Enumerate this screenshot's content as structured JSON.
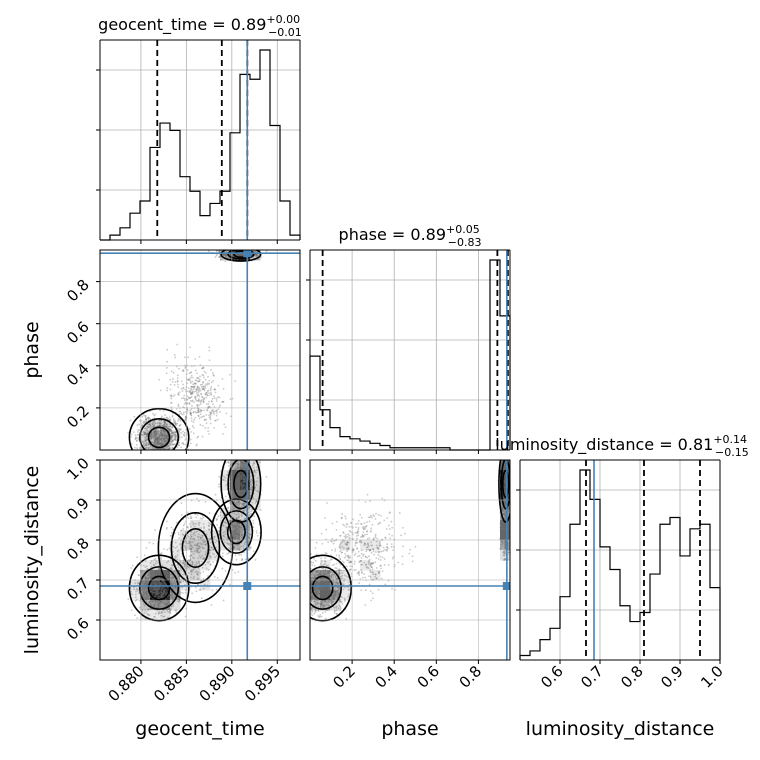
{
  "chart_data": {
    "type": "corner",
    "parameters": [
      {
        "name": "geocent_time",
        "range": [
          0.8755,
          0.8975
        ],
        "ticks": [
          0.88,
          0.885,
          0.89,
          0.895
        ],
        "tick_labels": [
          "0.880",
          "0.885",
          "0.890",
          "0.895"
        ]
      },
      {
        "name": "phase",
        "range": [
          0.0,
          0.95
        ],
        "ticks": [
          0.2,
          0.4,
          0.6,
          0.8
        ],
        "tick_labels": [
          "0.2",
          "0.4",
          "0.6",
          "0.8"
        ]
      },
      {
        "name": "luminosity_distance",
        "range": [
          0.5,
          1.0
        ],
        "ticks": [
          0.6,
          0.7,
          0.8,
          0.9,
          1.0
        ],
        "tick_labels": [
          "0.6",
          "0.7",
          "0.8",
          "0.9",
          "1.0"
        ]
      }
    ],
    "titles": [
      {
        "param": "geocent_time",
        "base": "geocent_time = 0.89",
        "sup": "+0.00",
        "sub": "−0.01"
      },
      {
        "param": "phase",
        "base": "phase = 0.89",
        "sup": "+0.05",
        "sub": "−0.83"
      },
      {
        "param": "luminosity_distance",
        "base": "luminosity_distance = 0.81",
        "sup": "+0.14",
        "sub": "−0.15"
      }
    ],
    "truths": {
      "geocent_time": 0.8917,
      "phase": 0.935,
      "luminosity_distance": 0.685
    },
    "quantiles": {
      "geocent_time": [
        0.8818,
        0.8889,
        0.8917
      ],
      "phase": [
        0.06,
        0.89,
        0.94
      ],
      "luminosity_distance": [
        0.665,
        0.81,
        0.95
      ]
    },
    "histograms": {
      "geocent_time": {
        "edges_start": 0.8755,
        "bin_width": 0.0011,
        "counts": [
          0,
          2,
          5,
          11,
          16,
          38,
          48,
          45,
          26,
          20,
          10,
          15,
          20,
          44,
          68,
          66,
          78,
          47,
          16,
          2
        ]
      },
      "phase": {
        "edges_start": 0.0,
        "bin_width": 0.0475,
        "counts": [
          42,
          18,
          10,
          6,
          5,
          4,
          3,
          2,
          1,
          1,
          1,
          1,
          1,
          1,
          0,
          0,
          0,
          0,
          85,
          60
        ]
      },
      "luminosity_distance": {
        "edges_start": 0.5,
        "bin_width": 0.025,
        "counts": [
          2,
          4,
          9,
          14,
          28,
          60,
          84,
          71,
          50,
          40,
          24,
          17,
          21,
          38,
          60,
          63,
          46,
          58,
          60,
          32
        ]
      }
    },
    "grid": true
  }
}
